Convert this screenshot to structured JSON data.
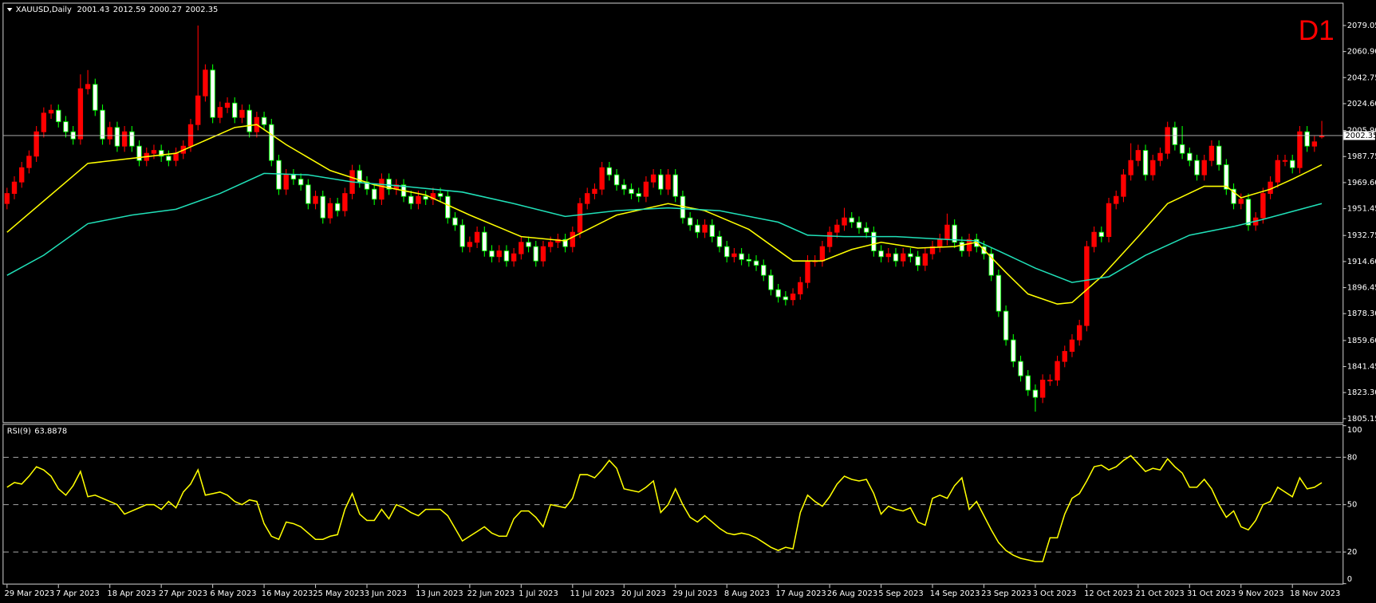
{
  "chart_data": {
    "type": "candlestick",
    "title": "XAUUSD,Daily",
    "timeframe": "D1",
    "categories": [
      "29 Mar 2023",
      null,
      null,
      null,
      null,
      null,
      null,
      "7 Apr 2023",
      null,
      null,
      null,
      null,
      null,
      null,
      "18 Apr 2023",
      null,
      null,
      null,
      null,
      null,
      null,
      "27 Apr 2023",
      null,
      null,
      null,
      null,
      null,
      null,
      "6 May 2023",
      null,
      null,
      null,
      null,
      null,
      null,
      "16 May 2023",
      null,
      null,
      null,
      null,
      null,
      null,
      "25 May 2023",
      null,
      null,
      null,
      null,
      null,
      null,
      "3 Jun 2023",
      null,
      null,
      null,
      null,
      null,
      null,
      "13 Jun 2023",
      null,
      null,
      null,
      null,
      null,
      null,
      "22 Jun 2023",
      null,
      null,
      null,
      null,
      null,
      null,
      "1 Jul 2023",
      null,
      null,
      null,
      null,
      null,
      null,
      "11 Jul 2023",
      null,
      null,
      null,
      null,
      null,
      null,
      "20 Jul 2023",
      null,
      null,
      null,
      null,
      null,
      null,
      "29 Jul 2023",
      null,
      null,
      null,
      null,
      null,
      null,
      "8 Aug 2023",
      null,
      null,
      null,
      null,
      null,
      null,
      "17 Aug 2023",
      null,
      null,
      null,
      null,
      null,
      null,
      "26 Aug 2023",
      null,
      null,
      null,
      null,
      null,
      null,
      "5 Sep 2023",
      null,
      null,
      null,
      null,
      null,
      null,
      "14 Sep 2023",
      null,
      null,
      null,
      null,
      null,
      null,
      "23 Sep 2023",
      null,
      null,
      null,
      null,
      null,
      null,
      "3 Oct 2023",
      null,
      null,
      null,
      null,
      null,
      null,
      "12 Oct 2023",
      null,
      null,
      null,
      null,
      null,
      null,
      "21 Oct 2023",
      null,
      null,
      null,
      null,
      null,
      null,
      "31 Oct 2023",
      null,
      null,
      null,
      null,
      null,
      null,
      "9 Nov 2023",
      null,
      null,
      null,
      null,
      null,
      null,
      "18 Nov 2023",
      null,
      null,
      null,
      null
    ],
    "open": [
      1955,
      1962,
      1970,
      1980,
      1988,
      2005,
      2018,
      2020,
      2012,
      2005,
      2000,
      2035,
      2038,
      2020,
      2000,
      2008,
      1995,
      2005,
      1995,
      1985,
      1990,
      1992,
      1988,
      1985,
      1990,
      1995,
      2010,
      2030,
      2048,
      2015,
      2022,
      2025,
      2015,
      2020,
      2005,
      2015,
      2010,
      1985,
      1965,
      1975,
      1972,
      1968,
      1955,
      1960,
      1945,
      1955,
      1950,
      1962,
      1978,
      1970,
      1965,
      1958,
      1972,
      1965,
      1968,
      1960,
      1955,
      1960,
      1958,
      1962,
      1960,
      1945,
      1940,
      1925,
      1928,
      1935,
      1922,
      1918,
      1922,
      1915,
      1920,
      1928,
      1925,
      1915,
      1925,
      1928,
      1930,
      1925,
      1935,
      1955,
      1962,
      1965,
      1980,
      1975,
      1968,
      1965,
      1962,
      1960,
      1970,
      1975,
      1965,
      1975,
      1960,
      1945,
      1940,
      1935,
      1940,
      1932,
      1925,
      1918,
      1920,
      1916,
      1915,
      1912,
      1905,
      1895,
      1890,
      1888,
      1892,
      1900,
      1915,
      1915,
      1925,
      1935,
      1940,
      1945,
      1942,
      1938,
      1935,
      1922,
      1918,
      1920,
      1915,
      1920,
      1918,
      1912,
      1920,
      1925,
      1930,
      1940,
      1928,
      1922,
      1930,
      1925,
      1920,
      1905,
      1880,
      1860,
      1845,
      1835,
      1825,
      1820,
      1832,
      1832,
      1845,
      1852,
      1860,
      1870,
      1925,
      1935,
      1932,
      1955,
      1960,
      1975,
      1985,
      1992,
      1975,
      1985,
      1990,
      2008,
      1996,
      1990,
      1985,
      1975,
      1985,
      1995,
      1982,
      1965,
      1955,
      1958,
      1940,
      1945,
      1962,
      1970,
      1985,
      1985,
      1980,
      2005,
      1995,
      2001.43
    ],
    "high": [
      1966,
      1974,
      1984,
      1992,
      2009,
      2022,
      2024,
      2024,
      2016,
      2009,
      2045,
      2048,
      2042,
      2024,
      2012,
      2012,
      2009,
      2009,
      1999,
      1994,
      1996,
      1996,
      1992,
      1994,
      1999,
      2014,
      2079,
      2052,
      2052,
      2026,
      2029,
      2029,
      2024,
      2024,
      2019,
      2019,
      2014,
      1989,
      1979,
      1979,
      1976,
      1972,
      1964,
      1964,
      1959,
      1959,
      1966,
      1982,
      1982,
      1974,
      1969,
      1976,
      1976,
      1972,
      1972,
      1964,
      1964,
      1964,
      1966,
      1966,
      1964,
      1949,
      1944,
      1932,
      1939,
      1939,
      1926,
      1926,
      1926,
      1924,
      1932,
      1932,
      1929,
      1929,
      1932,
      1934,
      1934,
      1939,
      1959,
      1966,
      1969,
      1984,
      1984,
      1979,
      1972,
      1969,
      1966,
      1974,
      1979,
      1979,
      1979,
      1979,
      1964,
      1949,
      1944,
      1944,
      1944,
      1936,
      1929,
      1924,
      1924,
      1920,
      1919,
      1916,
      1909,
      1899,
      1894,
      1896,
      1904,
      1919,
      1919,
      1929,
      1939,
      1944,
      1952,
      1949,
      1946,
      1942,
      1939,
      1926,
      1924,
      1924,
      1924,
      1924,
      1922,
      1924,
      1929,
      1934,
      1948,
      1944,
      1932,
      1934,
      1934,
      1929,
      1924,
      1909,
      1884,
      1864,
      1849,
      1839,
      1829,
      1836,
      1836,
      1849,
      1856,
      1864,
      1874,
      1929,
      1939,
      1939,
      1959,
      1964,
      1979,
      1997,
      1996,
      1996,
      1989,
      1994,
      2012,
      2012,
      2009,
      1994,
      1989,
      1989,
      1999,
      1999,
      1986,
      1969,
      1962,
      1962,
      1949,
      1966,
      1974,
      1989,
      1989,
      1989,
      2009,
      2009,
      2002,
      2012.59
    ],
    "low": [
      1951,
      1958,
      1966,
      1976,
      1984,
      2001,
      2014,
      2008,
      2001,
      1996,
      1996,
      2031,
      2016,
      1996,
      1996,
      1991,
      1991,
      1991,
      1981,
      1981,
      1986,
      1984,
      1981,
      1981,
      1986,
      1991,
      2006,
      2026,
      2011,
      2011,
      2018,
      2011,
      2011,
      2001,
      2001,
      2006,
      1981,
      1961,
      1961,
      1968,
      1964,
      1951,
      1951,
      1941,
      1941,
      1946,
      1946,
      1958,
      1966,
      1961,
      1954,
      1954,
      1961,
      1961,
      1956,
      1951,
      1951,
      1954,
      1954,
      1956,
      1941,
      1936,
      1921,
      1921,
      1924,
      1918,
      1914,
      1914,
      1911,
      1911,
      1916,
      1921,
      1911,
      1911,
      1921,
      1924,
      1921,
      1921,
      1931,
      1951,
      1958,
      1961,
      1971,
      1964,
      1961,
      1958,
      1956,
      1956,
      1966,
      1961,
      1961,
      1956,
      1941,
      1936,
      1931,
      1931,
      1928,
      1921,
      1914,
      1914,
      1912,
      1911,
      1908,
      1901,
      1891,
      1886,
      1884,
      1884,
      1888,
      1896,
      1911,
      1911,
      1921,
      1931,
      1936,
      1938,
      1934,
      1931,
      1918,
      1914,
      1914,
      1911,
      1911,
      1914,
      1908,
      1908,
      1916,
      1921,
      1926,
      1924,
      1918,
      1918,
      1921,
      1916,
      1901,
      1876,
      1856,
      1841,
      1831,
      1821,
      1810,
      1816,
      1828,
      1828,
      1841,
      1848,
      1856,
      1866,
      1921,
      1928,
      1928,
      1951,
      1956,
      1971,
      1981,
      1971,
      1971,
      1981,
      1986,
      1992,
      1986,
      1981,
      1971,
      1971,
      1981,
      1978,
      1961,
      1951,
      1951,
      1936,
      1936,
      1941,
      1958,
      1966,
      1981,
      1976,
      1976,
      1991,
      1991,
      2000.27
    ],
    "close": [
      1962,
      1970,
      1980,
      1988,
      2005,
      2018,
      2020,
      2012,
      2005,
      2000,
      2035,
      2038,
      2020,
      2000,
      2008,
      1995,
      2005,
      1995,
      1985,
      1990,
      1992,
      1988,
      1985,
      1990,
      1995,
      2010,
      2030,
      2048,
      2015,
      2022,
      2025,
      2015,
      2020,
      2005,
      2015,
      2010,
      1985,
      1965,
      1975,
      1972,
      1968,
      1955,
      1960,
      1945,
      1955,
      1950,
      1962,
      1978,
      1970,
      1965,
      1958,
      1972,
      1965,
      1968,
      1960,
      1955,
      1960,
      1958,
      1962,
      1960,
      1945,
      1940,
      1925,
      1928,
      1935,
      1922,
      1918,
      1922,
      1915,
      1920,
      1928,
      1925,
      1915,
      1925,
      1928,
      1930,
      1925,
      1935,
      1955,
      1962,
      1965,
      1980,
      1975,
      1968,
      1965,
      1962,
      1960,
      1970,
      1975,
      1965,
      1975,
      1960,
      1945,
      1940,
      1935,
      1940,
      1932,
      1925,
      1918,
      1920,
      1916,
      1915,
      1912,
      1905,
      1895,
      1890,
      1888,
      1892,
      1900,
      1915,
      1915,
      1925,
      1935,
      1940,
      1945,
      1942,
      1938,
      1935,
      1922,
      1918,
      1920,
      1915,
      1920,
      1918,
      1912,
      1920,
      1925,
      1930,
      1940,
      1928,
      1922,
      1930,
      1925,
      1920,
      1905,
      1880,
      1860,
      1845,
      1835,
      1825,
      1820,
      1832,
      1832,
      1845,
      1852,
      1860,
      1870,
      1925,
      1935,
      1932,
      1955,
      1960,
      1975,
      1985,
      1992,
      1975,
      1985,
      1990,
      2008,
      1996,
      1990,
      1985,
      1975,
      1985,
      1995,
      1982,
      1965,
      1955,
      1958,
      1940,
      1945,
      1962,
      1970,
      1985,
      1985,
      1980,
      2005,
      1995,
      1998,
      2002.35
    ],
    "bull_color": "#ff0000",
    "bear_color": "#ffffff",
    "bear_outline": "#00ff00",
    "moving_averages": [
      {
        "color": "#ffff00",
        "x": [
          0,
          11,
          23,
          31,
          34,
          38,
          44,
          50,
          57,
          63,
          70,
          76,
          83,
          90,
          95,
          101,
          107,
          111,
          115,
          119,
          124,
          129,
          132,
          136,
          139,
          143,
          145,
          149,
          154,
          158,
          163,
          166,
          168,
          172,
          175,
          179
        ],
        "values": [
          1935,
          1983,
          1990,
          2008,
          2010,
          1996,
          1978,
          1968,
          1961,
          1947,
          1932,
          1929,
          1947,
          1955,
          1950,
          1937,
          1915,
          1915,
          1923,
          1928,
          1924,
          1925,
          1928,
          1907,
          1892,
          1885,
          1886,
          1904,
          1932,
          1955,
          1967,
          1967,
          1959,
          1965,
          1972,
          1982
        ]
      },
      {
        "color": "#20e0b8",
        "x": [
          0,
          5,
          11,
          17,
          23,
          29,
          35,
          41,
          47,
          54,
          62,
          69,
          76,
          83,
          90,
          97,
          105,
          109,
          114,
          121,
          128,
          132,
          135,
          140,
          145,
          150,
          155,
          161,
          167,
          171,
          179
        ],
        "values": [
          1905,
          1919,
          1941,
          1947,
          1951,
          1962,
          1976,
          1975,
          1970,
          1967,
          1963,
          1955,
          1946,
          1950,
          1952,
          1950,
          1942,
          1933,
          1932,
          1932,
          1930,
          1929,
          1922,
          1910,
          1900,
          1904,
          1919,
          1933,
          1939,
          1944,
          1955
        ]
      }
    ],
    "ylim": [
      1802.7,
      2094.3
    ],
    "yticks": [
      2079.05,
      {
        "value": 2060.9,
        "label": "2060.90"
      },
      2042.75,
      {
        "value": 2024.6,
        "label": "2024.60"
      },
      {
        "value": 2005.9,
        "label": "2005.90"
      },
      1987.75,
      {
        "value": 1969.6,
        "label": "1969.60"
      },
      1951.45,
      1932.75,
      {
        "value": 1914.6,
        "label": "1914.60"
      },
      1896.45,
      {
        "value": 1878.3,
        "label": "1878.30"
      },
      {
        "value": 1859.6,
        "label": "1859.60"
      },
      1841.45,
      {
        "value": 1823.3,
        "label": "1823.30"
      },
      1805.15
    ],
    "rsi": {
      "title": "RSI(9)",
      "color": "#ffff00",
      "ylim": [
        0,
        100
      ],
      "yticks": [
        0,
        20,
        50,
        80,
        100
      ],
      "levels": [
        20,
        50,
        80
      ],
      "values": [
        61,
        64,
        63,
        68,
        74,
        72,
        68,
        60,
        56,
        62,
        71,
        55,
        56,
        54,
        52,
        50,
        44,
        46,
        48,
        50,
        50,
        47,
        52,
        48,
        58,
        63,
        72,
        56,
        57,
        58,
        56,
        52,
        50,
        53,
        52,
        38,
        30,
        28,
        39,
        38,
        36,
        32,
        28,
        28,
        30,
        31,
        47,
        57,
        44,
        40,
        40,
        47,
        41,
        50,
        48,
        45,
        43,
        47,
        47,
        47,
        43,
        35,
        27,
        30,
        33,
        36,
        32,
        30,
        30,
        41,
        46,
        46,
        42,
        36,
        50,
        49,
        48,
        54,
        69,
        69,
        67,
        72,
        78,
        73,
        60,
        59,
        58,
        61,
        65,
        45,
        50,
        60,
        50,
        42,
        39,
        43,
        39,
        35,
        32,
        31,
        32,
        31,
        29,
        26,
        23,
        21,
        23,
        22,
        45,
        56,
        52,
        49,
        55,
        63,
        68,
        66,
        65,
        66,
        57,
        44,
        49,
        47,
        46,
        48,
        39,
        37,
        54,
        56,
        54,
        62,
        67,
        47,
        52,
        43,
        34,
        26,
        21,
        18,
        16,
        15,
        14,
        14,
        29,
        29,
        44,
        54,
        57,
        65,
        74,
        75,
        72,
        74,
        78,
        81,
        76,
        71,
        73,
        72,
        79,
        74,
        70,
        61,
        61,
        66,
        60,
        50,
        42,
        46,
        36,
        34,
        40,
        50,
        52,
        61,
        58,
        55,
        67,
        60,
        61,
        63.8878
      ]
    }
  }
}
